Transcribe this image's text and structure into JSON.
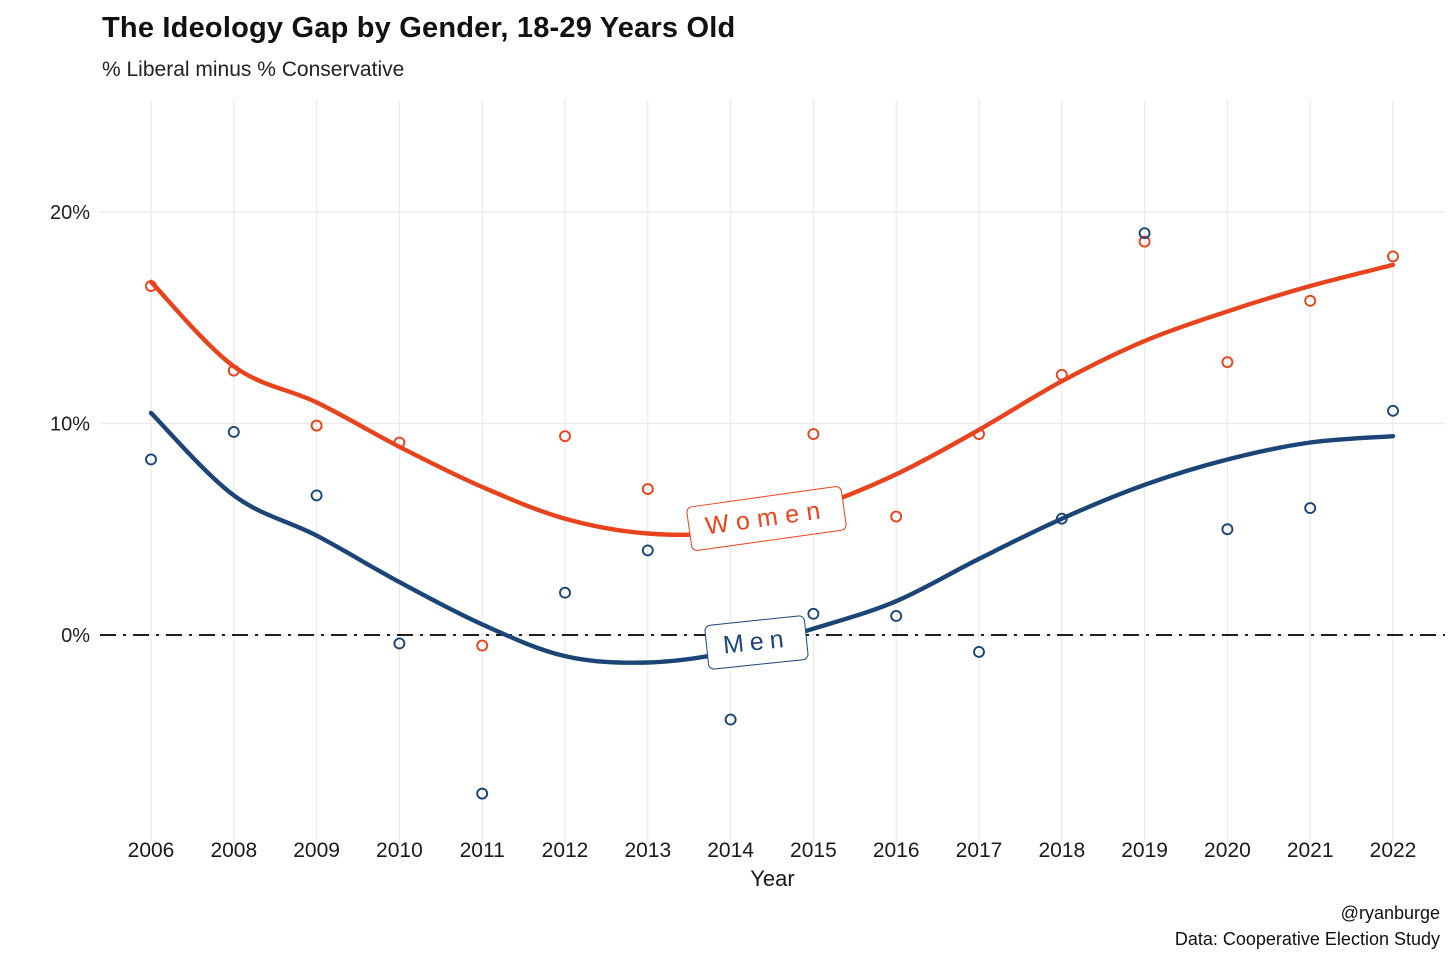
{
  "title": "The Ideology Gap by Gender, 18-29 Years Old",
  "subtitle": "% Liberal minus % Conservative",
  "credits": {
    "handle": "@ryanburge",
    "source": "Data: Cooperative Election Study"
  },
  "chart_data": {
    "type": "scatter",
    "title": "The Ideology Gap by Gender, 18-29 Years Old",
    "subtitle": "% Liberal minus % Conservative",
    "xlabel": "Year",
    "ylabel": "",
    "categories": [
      "2006",
      "2008",
      "2009",
      "2010",
      "2011",
      "2012",
      "2013",
      "2014",
      "2015",
      "2016",
      "2017",
      "2018",
      "2019",
      "2020",
      "2021",
      "2022"
    ],
    "y_ticks": [
      {
        "value": 0,
        "label": "0%"
      },
      {
        "value": 10,
        "label": "10%"
      },
      {
        "value": 20,
        "label": "20%"
      }
    ],
    "ylim": [
      -9.5,
      25.5
    ],
    "grid": true,
    "zero_line_style": "dash-dot",
    "series": [
      {
        "name": "Women",
        "color": "#E8431D",
        "scatter": [
          16.5,
          12.5,
          9.9,
          9.1,
          -0.5,
          9.4,
          6.9,
          null,
          9.5,
          5.6,
          9.5,
          12.3,
          18.6,
          12.9,
          15.8,
          17.9
        ],
        "smooth": [
          16.7,
          12.7,
          11.0,
          8.9,
          7.0,
          5.5,
          4.8,
          4.9,
          6.0,
          7.6,
          9.7,
          12.0,
          13.9,
          15.3,
          16.5,
          17.5
        ]
      },
      {
        "name": "Men",
        "color": "#1B4577",
        "scatter": [
          8.3,
          9.6,
          6.6,
          -0.4,
          -7.5,
          2.0,
          4.0,
          -4.0,
          1.0,
          0.9,
          -0.8,
          5.5,
          19.0,
          5.0,
          6.0,
          10.6
        ],
        "smooth": [
          10.5,
          6.6,
          4.7,
          2.5,
          0.5,
          -1.0,
          -1.3,
          -0.8,
          0.3,
          1.6,
          3.6,
          5.5,
          7.1,
          8.3,
          9.1,
          9.4
        ]
      }
    ],
    "annotations": [
      {
        "text": "Women",
        "color": "#E8431D"
      },
      {
        "text": "Men",
        "color": "#1B4577"
      }
    ],
    "legend_position": "inline-labels"
  }
}
